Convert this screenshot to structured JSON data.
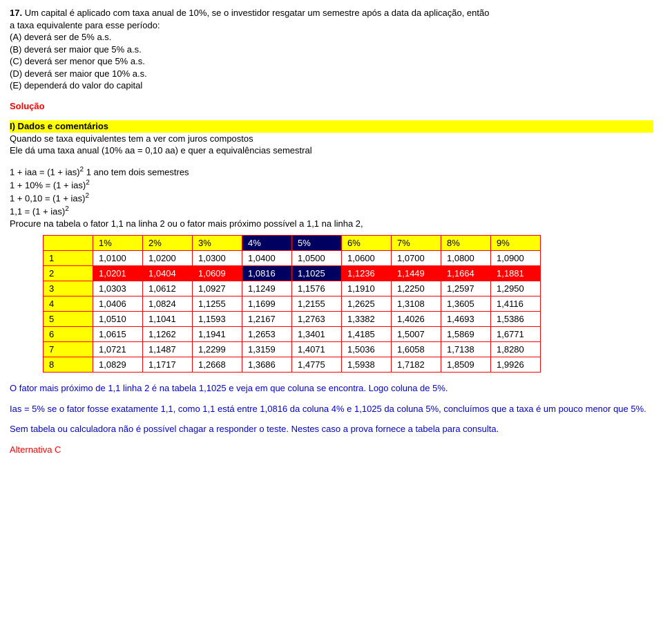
{
  "question": {
    "number_prefix": "17.",
    "text_line1": " Um capital é aplicado com taxa anual de 10%, se o investidor resgatar um semestre após a data da aplicação, então",
    "text_line2": "a taxa equivalente para esse período:",
    "optA": "(A)  deverá ser de 5% a.s.",
    "optB": "(B)  deverá ser maior que 5% a.s.",
    "optC": "(C)  deverá ser menor que 5% a.s.",
    "optD": "(D)  deverá ser maior que 10% a.s.",
    "optE": "(E)  dependerá do valor do capital"
  },
  "solucao_label": "Solução",
  "section1": {
    "title": "I) Dados e comentários",
    "line1": "Quando se taxa equivalentes tem a ver com juros compostos",
    "line2": "Ele dá uma taxa anual (10% aa = 0,10 aa) e quer a equivalências semestral"
  },
  "calc": {
    "l1a": "1 + iaa = (1 + ias)",
    "l1b": "   1 ano tem dois semestres",
    "l2": "1 + 10% = (1 + ias)",
    "l3": "1 + 0,10 = (1 + ias)",
    "l4": "1,1 = (1 + ias)",
    "exp": "2",
    "l5": "Procure na tabela o fator 1,1 na linha 2 ou o fator mais próximo possível a 1,1 na linha 2,"
  },
  "table": {
    "header": [
      "",
      "1%",
      "2%",
      "3%",
      "4%",
      "5%",
      "6%",
      "7%",
      "8%",
      "9%"
    ],
    "rows": [
      [
        "1",
        "1,0100",
        "1,0200",
        "1,0300",
        "1,0400",
        "1,0500",
        "1,0600",
        "1,0700",
        "1,0800",
        "1,0900"
      ],
      [
        "2",
        "1,0201",
        "1,0404",
        "1,0609",
        "1,0816",
        "1,1025",
        "1,1236",
        "1,1449",
        "1,1664",
        "1,1881"
      ],
      [
        "3",
        "1,0303",
        "1,0612",
        "1,0927",
        "1,1249",
        "1,1576",
        "1,1910",
        "1,2250",
        "1,2597",
        "1,2950"
      ],
      [
        "4",
        "1,0406",
        "1,0824",
        "1,1255",
        "1,1699",
        "1,2155",
        "1,2625",
        "1,3108",
        "1,3605",
        "1,4116"
      ],
      [
        "5",
        "1,0510",
        "1,1041",
        "1,1593",
        "1,2167",
        "1,2763",
        "1,3382",
        "1,4026",
        "1,4693",
        "1,5386"
      ],
      [
        "6",
        "1,0615",
        "1,1262",
        "1,1941",
        "1,2653",
        "1,3401",
        "1,4185",
        "1,5007",
        "1,5869",
        "1,6771"
      ],
      [
        "7",
        "1,0721",
        "1,1487",
        "1,2299",
        "1,3159",
        "1,4071",
        "1,5036",
        "1,6058",
        "1,7138",
        "1,8280"
      ],
      [
        "8",
        "1,0829",
        "1,1717",
        "1,2668",
        "1,3686",
        "1,4775",
        "1,5938",
        "1,7182",
        "1,8509",
        "1,9926"
      ]
    ]
  },
  "conclusion": {
    "p1": "O fator mais próximo de 1,1 linha 2 é na tabela 1,1025 e veja em que coluna se encontra. Logo coluna de 5%.",
    "p2": "Ias = 5% se o fator fosse exatamente 1,1, como 1,1 está entre 1,0816 da coluna 4% e 1,1025 da coluna 5%, concluímos que a taxa é um pouco menor que 5%.",
    "p3": "Sem tabela ou calculadora não é possível chagar a responder o teste. Nestes caso a prova fornece a tabela para consulta.",
    "answer": "Alternativa C"
  }
}
